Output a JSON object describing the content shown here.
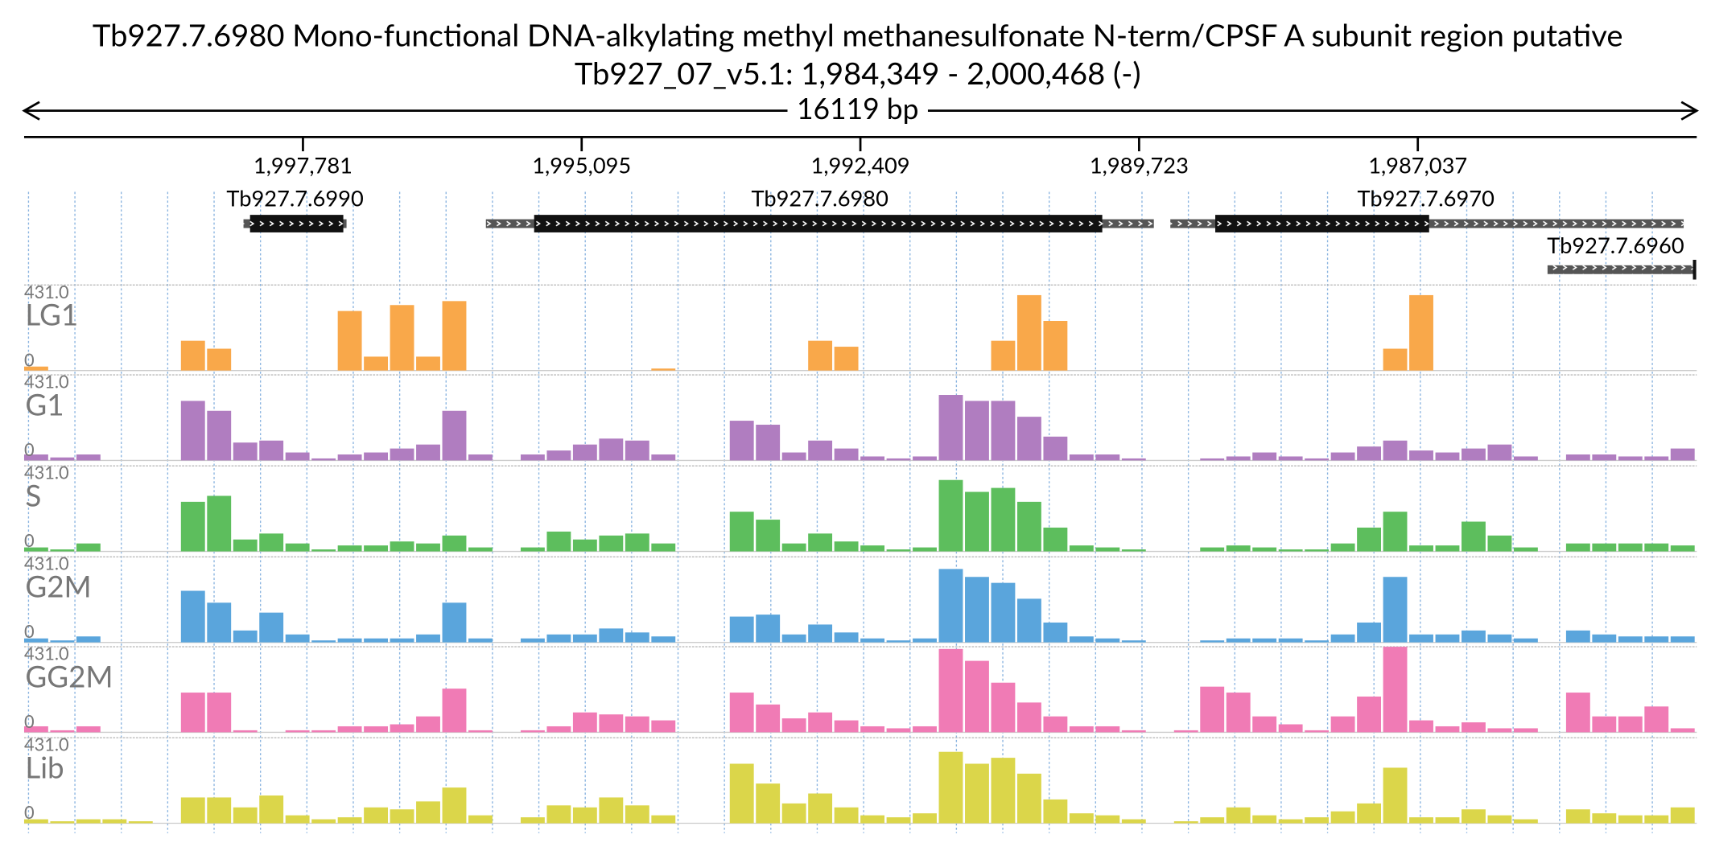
{
  "title": "Tb927.7.6980  Mono-functional DNA-alkylating methyl methanesulfonate N-term/CPSF A subunit region  putative",
  "subtitle": "Tb927_07_v5.1: 1,984,349 - 2,000,468 (-)",
  "span_label": "16119 bp",
  "xlim": [
    2000468,
    1984349
  ],
  "xticks": [
    {
      "value": 1997781,
      "label": "1,997,781"
    },
    {
      "value": 1995095,
      "label": "1,995,095"
    },
    {
      "value": 1992409,
      "label": "1,992,409"
    },
    {
      "value": 1989723,
      "label": "1,989,723"
    },
    {
      "value": 1987037,
      "label": "1,987,037"
    }
  ],
  "genes": [
    {
      "name": "Tb927.7.6990",
      "extent": [
        1998354,
        1997361
      ],
      "cds": [
        1998291,
        1997392
      ]
    },
    {
      "name": "Tb927.7.6980",
      "extent": [
        1996018,
        1989581
      ],
      "cds": [
        1995553,
        1990078
      ]
    },
    {
      "name": "Tb927.7.6970",
      "extent": [
        1989422,
        1984475
      ],
      "cds": [
        1988989,
        1986928
      ]
    },
    {
      "name": "Tb927.7.6960",
      "extent": [
        1985787,
        1984370
      ]
    }
  ],
  "data_range": {
    "max": {
      "value": 431,
      "label": "431.0"
    },
    "min": 0
  },
  "tracks": [
    {
      "name": "LG1",
      "color": "#f9a84a",
      "values": [
        20,
        0,
        0,
        0,
        0,
        0,
        150,
        110,
        0,
        0,
        0,
        0,
        300,
        70,
        330,
        70,
        350,
        0,
        0,
        0,
        0,
        0,
        0,
        0,
        10,
        0,
        0,
        0,
        0,
        0,
        150,
        120,
        0,
        0,
        0,
        0,
        0,
        150,
        380,
        250,
        0,
        0,
        0,
        0,
        0,
        0,
        0,
        0,
        0,
        0,
        0,
        0,
        110,
        380,
        0,
        0,
        0,
        0,
        0,
        0,
        0,
        0,
        0,
        0
      ]
    },
    {
      "name": "G1",
      "color": "#b07dc0",
      "values": [
        30,
        15,
        30,
        0,
        0,
        0,
        300,
        250,
        90,
        100,
        40,
        10,
        30,
        40,
        60,
        80,
        250,
        30,
        0,
        30,
        50,
        80,
        110,
        100,
        30,
        0,
        0,
        200,
        180,
        40,
        100,
        60,
        20,
        10,
        20,
        330,
        300,
        300,
        220,
        120,
        30,
        30,
        10,
        0,
        0,
        10,
        20,
        40,
        20,
        10,
        40,
        70,
        100,
        50,
        40,
        60,
        80,
        20,
        0,
        30,
        30,
        20,
        20,
        60
      ]
    },
    {
      "name": "S",
      "color": "#5dbe5d",
      "values": [
        20,
        10,
        40,
        0,
        0,
        0,
        250,
        280,
        60,
        90,
        40,
        10,
        30,
        30,
        50,
        40,
        80,
        20,
        0,
        20,
        100,
        60,
        80,
        90,
        40,
        0,
        0,
        200,
        160,
        40,
        90,
        50,
        30,
        10,
        20,
        360,
        300,
        320,
        250,
        120,
        30,
        20,
        10,
        0,
        0,
        20,
        30,
        20,
        10,
        10,
        40,
        120,
        200,
        30,
        30,
        150,
        80,
        20,
        0,
        40,
        40,
        40,
        40,
        30
      ]
    },
    {
      "name": "G2M",
      "color": "#5aa5dc",
      "values": [
        20,
        10,
        30,
        0,
        0,
        0,
        260,
        200,
        60,
        150,
        40,
        10,
        20,
        20,
        20,
        40,
        200,
        20,
        0,
        20,
        40,
        40,
        70,
        50,
        30,
        0,
        0,
        130,
        140,
        40,
        90,
        50,
        20,
        10,
        20,
        370,
        330,
        300,
        220,
        100,
        30,
        20,
        10,
        0,
        0,
        10,
        20,
        20,
        20,
        10,
        40,
        100,
        330,
        40,
        40,
        60,
        40,
        20,
        0,
        60,
        40,
        30,
        30,
        30
      ]
    },
    {
      "name": "GG2M",
      "color": "#f07bb5",
      "values": [
        30,
        10,
        30,
        0,
        0,
        0,
        200,
        200,
        10,
        0,
        10,
        10,
        30,
        30,
        40,
        80,
        220,
        10,
        0,
        10,
        30,
        100,
        90,
        80,
        60,
        0,
        0,
        200,
        140,
        70,
        100,
        60,
        30,
        20,
        30,
        420,
        360,
        250,
        150,
        80,
        30,
        30,
        10,
        0,
        10,
        230,
        200,
        80,
        40,
        10,
        80,
        180,
        431,
        60,
        30,
        50,
        20,
        20,
        0,
        200,
        80,
        80,
        130,
        20
      ]
    },
    {
      "name": "Lib",
      "color": "#dbd64a",
      "values": [
        20,
        10,
        20,
        20,
        10,
        0,
        130,
        130,
        80,
        140,
        40,
        20,
        30,
        80,
        70,
        110,
        180,
        40,
        0,
        30,
        90,
        80,
        130,
        90,
        40,
        0,
        0,
        300,
        200,
        100,
        150,
        80,
        40,
        30,
        50,
        360,
        300,
        330,
        250,
        120,
        50,
        40,
        20,
        0,
        10,
        30,
        80,
        40,
        20,
        30,
        60,
        100,
        280,
        30,
        30,
        70,
        40,
        20,
        0,
        70,
        50,
        40,
        40,
        80
      ]
    }
  ]
}
